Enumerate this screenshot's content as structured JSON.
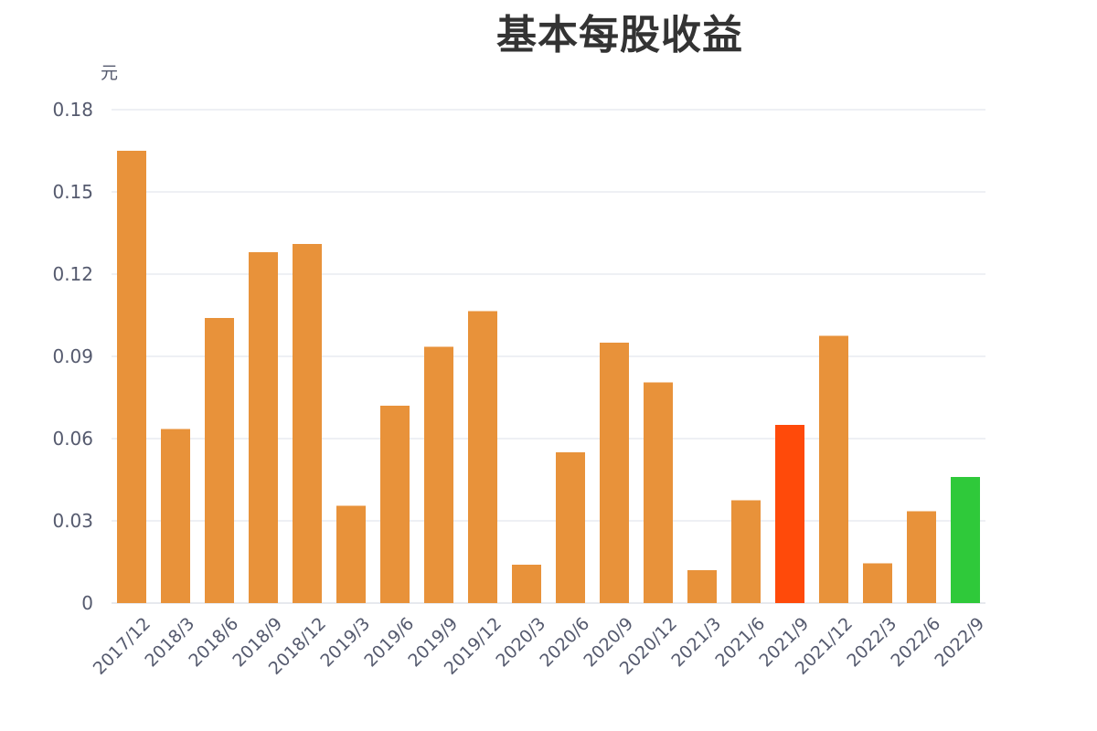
{
  "chart_data": {
    "type": "bar",
    "title": "基本每股收益",
    "ylabel": "元",
    "xlabel": "",
    "ylim": [
      0,
      0.18
    ],
    "yticks": [
      "0",
      "0.03",
      "0.06",
      "0.09",
      "0.12",
      "0.15",
      "0.18"
    ],
    "grid": true,
    "categories": [
      "2017/12",
      "2018/3",
      "2018/6",
      "2018/9",
      "2018/12",
      "2019/3",
      "2019/6",
      "2019/9",
      "2019/12",
      "2020/3",
      "2020/6",
      "2020/9",
      "2020/12",
      "2021/3",
      "2021/6",
      "2021/9",
      "2021/12",
      "2022/3",
      "2022/6",
      "2022/9"
    ],
    "values": [
      0.165,
      0.0635,
      0.104,
      0.128,
      0.131,
      0.0355,
      0.072,
      0.0935,
      0.1065,
      0.014,
      0.055,
      0.095,
      0.0805,
      0.012,
      0.0375,
      0.065,
      0.0975,
      0.0145,
      0.0335,
      0.046
    ],
    "colors": {
      "default": "#e8923a",
      "highlight_2021_9": "#ff4a0a",
      "highlight_2022_9": "#2fc93a",
      "grid": "#dde1ea",
      "text": "#555a6e"
    },
    "bar_colors": [
      "#e8923a",
      "#e8923a",
      "#e8923a",
      "#e8923a",
      "#e8923a",
      "#e8923a",
      "#e8923a",
      "#e8923a",
      "#e8923a",
      "#e8923a",
      "#e8923a",
      "#e8923a",
      "#e8923a",
      "#e8923a",
      "#e8923a",
      "#ff4a0a",
      "#e8923a",
      "#e8923a",
      "#e8923a",
      "#2fc93a"
    ]
  }
}
